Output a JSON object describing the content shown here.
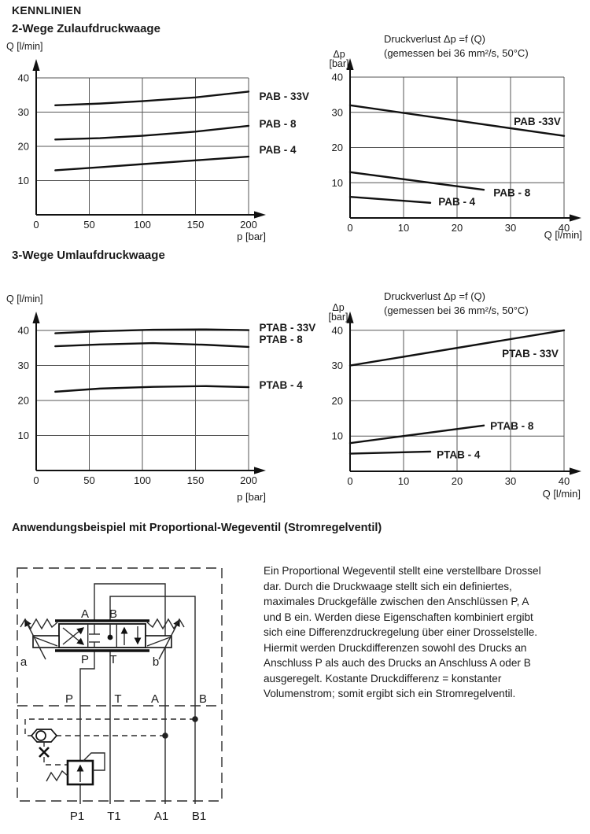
{
  "headings": {
    "main": "KENNLINIEN",
    "section1": "2-Wege Zulaufdruckwaage",
    "section2": "3-Wege Umlaufdruckwaage",
    "section3": "Anwendungsbeispiel mit Proportional-Wegeventil (Stromregelventil)"
  },
  "chart_data": [
    {
      "id": "pab-flow",
      "type": "line",
      "title_lines": [],
      "ylabel_lines": [
        "Q [l/min]"
      ],
      "xlabel": "p [bar]",
      "xlim": [
        0,
        200
      ],
      "ylim": [
        0,
        40
      ],
      "x_ticks": [
        0,
        50,
        100,
        150,
        200
      ],
      "y_ticks": [
        10,
        20,
        30,
        40
      ],
      "grid": true,
      "legend": "labels-right",
      "series": [
        {
          "name": "PAB - 33V",
          "points": [
            [
              18,
              32
            ],
            [
              60,
              32.5
            ],
            [
              100,
              33.2
            ],
            [
              150,
              34.3
            ],
            [
              200,
              36
            ]
          ],
          "label_at": [
            210,
            34.7
          ]
        },
        {
          "name": "PAB - 8",
          "points": [
            [
              18,
              22
            ],
            [
              60,
              22.4
            ],
            [
              100,
              23.1
            ],
            [
              150,
              24.3
            ],
            [
              200,
              26
            ]
          ],
          "label_at": [
            210,
            26.7
          ]
        },
        {
          "name": "PAB - 4",
          "points": [
            [
              18,
              13
            ],
            [
              60,
              13.9
            ],
            [
              100,
              14.8
            ],
            [
              150,
              15.9
            ],
            [
              200,
              17
            ]
          ],
          "label_at": [
            210,
            19.1
          ]
        }
      ]
    },
    {
      "id": "pab-dp",
      "type": "line",
      "title_lines": [
        "Druckverlust Δp =f (Q)",
        "(gemessen bei 36 mm²/s, 50°C)"
      ],
      "ylabel_lines": [
        "Δp",
        "[bar]"
      ],
      "xlabel": "Q [l/min]",
      "xlim": [
        0,
        40
      ],
      "ylim": [
        0,
        40
      ],
      "x_ticks": [
        0,
        10,
        20,
        30,
        40
      ],
      "y_ticks": [
        10,
        20,
        30,
        40
      ],
      "grid": true,
      "legend": "labels-inline",
      "series": [
        {
          "name": "PAB -33V",
          "points": [
            [
              0,
              32
            ],
            [
              40,
              23.3
            ]
          ],
          "label_at": [
            30.6,
            27.5
          ]
        },
        {
          "name": "PAB - 8",
          "points": [
            [
              0,
              13
            ],
            [
              25,
              8
            ]
          ],
          "label_at": [
            26.8,
            7.3
          ]
        },
        {
          "name": "PAB - 4",
          "points": [
            [
              0,
              6
            ],
            [
              15,
              4.3
            ]
          ],
          "label_at": [
            16.5,
            4.7
          ]
        }
      ]
    },
    {
      "id": "ptab-flow",
      "type": "line",
      "title_lines": [],
      "ylabel_lines": [
        "Q [l/min]"
      ],
      "xlabel": "p [bar]",
      "xlim": [
        0,
        200
      ],
      "ylim": [
        0,
        40
      ],
      "x_ticks": [
        0,
        50,
        100,
        150,
        200
      ],
      "y_ticks": [
        10,
        20,
        30,
        40
      ],
      "grid": true,
      "legend": "labels-right",
      "series": [
        {
          "name": "PTAB - 33V",
          "points": [
            [
              18,
              39.2
            ],
            [
              60,
              39.8
            ],
            [
              110,
              40.2
            ],
            [
              160,
              40.3
            ],
            [
              200,
              40.1
            ]
          ],
          "label_at": [
            210,
            40.9
          ]
        },
        {
          "name": "PTAB - 8",
          "points": [
            [
              18,
              35.5
            ],
            [
              60,
              36
            ],
            [
              110,
              36.4
            ],
            [
              160,
              35.9
            ],
            [
              200,
              35.3
            ]
          ],
          "label_at": [
            210,
            37.5
          ]
        },
        {
          "name": "PTAB - 4",
          "points": [
            [
              18,
              22.5
            ],
            [
              60,
              23.4
            ],
            [
              110,
              23.9
            ],
            [
              160,
              24.1
            ],
            [
              200,
              23.8
            ]
          ],
          "label_at": [
            210,
            24.5
          ]
        }
      ]
    },
    {
      "id": "ptab-dp",
      "type": "line",
      "title_lines": [
        "Druckverlust Δp =f (Q)",
        "(gemessen bei 36 mm²/s, 50°C)"
      ],
      "ylabel_lines": [
        "Δp",
        "[bar]"
      ],
      "xlabel": "Q [l/min]",
      "xlim": [
        0,
        40
      ],
      "ylim": [
        0,
        40
      ],
      "x_ticks": [
        0,
        10,
        20,
        30,
        40
      ],
      "y_ticks": [
        10,
        20,
        30,
        40
      ],
      "grid": true,
      "legend": "labels-inline",
      "series": [
        {
          "name": "PTAB - 33V",
          "points": [
            [
              0,
              30
            ],
            [
              40,
              40
            ]
          ],
          "label_at": [
            28.4,
            33.5
          ]
        },
        {
          "name": "PTAB - 8",
          "points": [
            [
              0,
              8
            ],
            [
              25,
              13
            ]
          ],
          "label_at": [
            26.2,
            13
          ]
        },
        {
          "name": "PTAB - 4",
          "points": [
            [
              0,
              5
            ],
            [
              15,
              5.6
            ]
          ],
          "label_at": [
            16.2,
            4.8
          ]
        }
      ]
    }
  ],
  "application": {
    "text": "Ein Proportional Wegeventil stellt eine verstellbare Drossel\ndar. Durch die Druckwaage stellt sich ein definiertes,\nmaximales Druckgefälle zwischen den Anschlüssen P, A\nund B ein. Werden diese Eigenschaften kombiniert ergibt\nsich eine Differenzdruckregelung über einer Drosselstelle.\nHiermit werden Druckdifferenzen sowohl des Drucks an\nAnschluss P als auch des Drucks an Anschluss A oder B\nausgeregelt. Kostante Druckdifferenz = konstanter\nVolumenstrom; somit ergibt sich ein Stromregelventil."
  },
  "diagram": {
    "top_a": "A",
    "top_b": "B",
    "sol_a": "a",
    "sol_b": "b",
    "bot_p": "P",
    "bot_t": "T",
    "mid_p": "P",
    "mid_t": "T",
    "mid_a": "A",
    "mid_b": "B",
    "port_p1": "P1",
    "port_t1": "T1",
    "port_a1": "A1",
    "port_b1": "B1"
  }
}
